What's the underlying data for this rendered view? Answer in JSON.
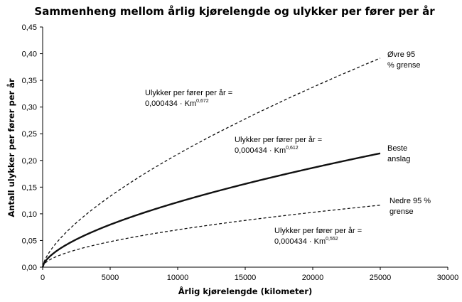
{
  "chart_data": {
    "type": "line",
    "title": "Sammenheng mellom årlig kjørelengde og ulykker per fører per år",
    "xlabel": "Årlig kjørelengde (kilometer)",
    "ylabel": "Antall ulykker per fører per år",
    "xlim": [
      0,
      30000
    ],
    "ylim": [
      0,
      0.45
    ],
    "x_ticks": [
      0,
      5000,
      10000,
      15000,
      20000,
      25000,
      30000
    ],
    "x_tick_labels": [
      "0",
      "5000",
      "10000",
      "15000",
      "20000",
      "25000",
      "30000"
    ],
    "y_ticks": [
      0,
      0.05,
      0.1,
      0.15,
      0.2,
      0.25,
      0.3,
      0.35,
      0.4,
      0.45
    ],
    "y_tick_labels": [
      "0,00",
      "0,05",
      "0,10",
      "0,15",
      "0,20",
      "0,25",
      "0,30",
      "0,35",
      "0,40",
      "0,45"
    ],
    "grid": false,
    "series": [
      {
        "name": "Øvre 95 % grense",
        "coef": 0.000434,
        "exponent": 0.672,
        "x_range": [
          0,
          25000
        ],
        "style": "dashed",
        "color": "#111111"
      },
      {
        "name": "Beste anslag",
        "coef": 0.000434,
        "exponent": 0.612,
        "x_range": [
          0,
          25000
        ],
        "style": "solid",
        "color": "#111111"
      },
      {
        "name": "Nedre 95 % grense",
        "coef": 0.000434,
        "exponent": 0.552,
        "x_range": [
          0,
          25000
        ],
        "style": "dashed",
        "color": "#111111"
      }
    ],
    "series_labels": [
      {
        "line1": "Øvre 95",
        "line2": "% grense"
      },
      {
        "line1": "Beste",
        "line2": "anslag"
      },
      {
        "line1": "Nedre 95 %",
        "line2": "grense"
      }
    ],
    "annotations": [
      {
        "line1": "Ulykker per fører per år =",
        "line2_prefix": "0,000434 · Km",
        "superscript": "0,672"
      },
      {
        "line1": "Ulykker per fører per år =",
        "line2_prefix": "0,000434 · Km",
        "superscript": "0,612"
      },
      {
        "line1": "Ulykker per fører per år =",
        "line2_prefix": "0,000434 · Km",
        "superscript": "0,552"
      }
    ]
  }
}
